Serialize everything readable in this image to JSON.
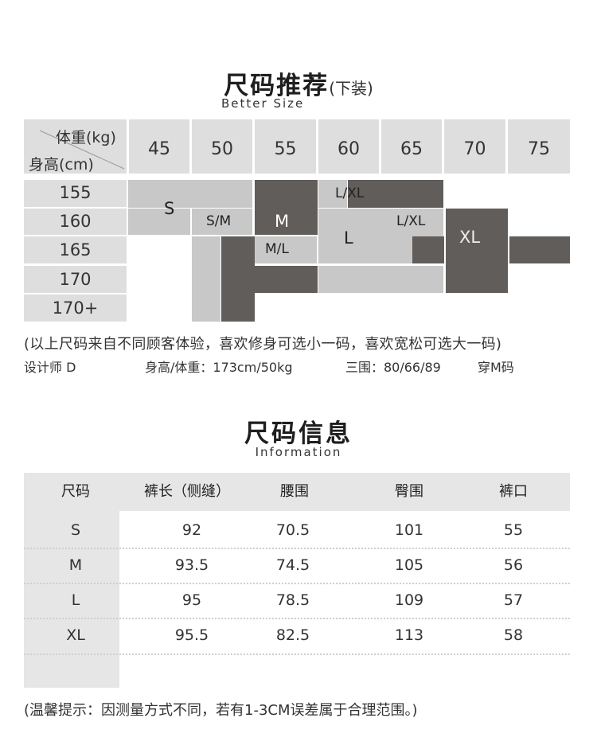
{
  "recommend": {
    "title": "尺码推荐",
    "title_suffix": "(下装)",
    "subtitle": "Better  Size",
    "corner_weight": "体重(kg)",
    "corner_height": "身高(cm)",
    "weights": [
      "45",
      "50",
      "55",
      "60",
      "65",
      "70",
      "75"
    ],
    "heights": [
      "155",
      "160",
      "165",
      "170",
      "170+"
    ],
    "size_labels": {
      "s": "S",
      "sm": "S/M",
      "m": "M",
      "ml": "M/L",
      "l": "L",
      "lxl_top": "L/XL",
      "lxl_mid": "L/XL",
      "xl": "XL"
    },
    "note": "(以上尺码来自不同顾客体验，喜欢修身可选小一码，喜欢宽松可选大一码)",
    "designer": "设计师 D",
    "designer_stats": "身高/体重：173cm/50kg",
    "designer_measure": "三围：80/66/89",
    "designer_wear": "穿M码"
  },
  "info": {
    "title": "尺码信息",
    "subtitle": "Information",
    "headers": [
      "尺码",
      "裤长（侧缝）",
      "腰围",
      "臀围",
      "裤口"
    ],
    "rows": [
      [
        "S",
        "92",
        "70.5",
        "101",
        "55"
      ],
      [
        "M",
        "93.5",
        "74.5",
        "105",
        "56"
      ],
      [
        "L",
        "95",
        "78.5",
        "109",
        "57"
      ],
      [
        "XL",
        "95.5",
        "82.5",
        "113",
        "58"
      ]
    ],
    "note": "(温馨提示：因测量方式不同，若有1-3CM误差属于合理范围。)"
  },
  "colors": {
    "light": "#c8c8c8",
    "dark": "#615d5a",
    "header_bg": "#dedede",
    "table_bg": "#e6e6e6"
  }
}
